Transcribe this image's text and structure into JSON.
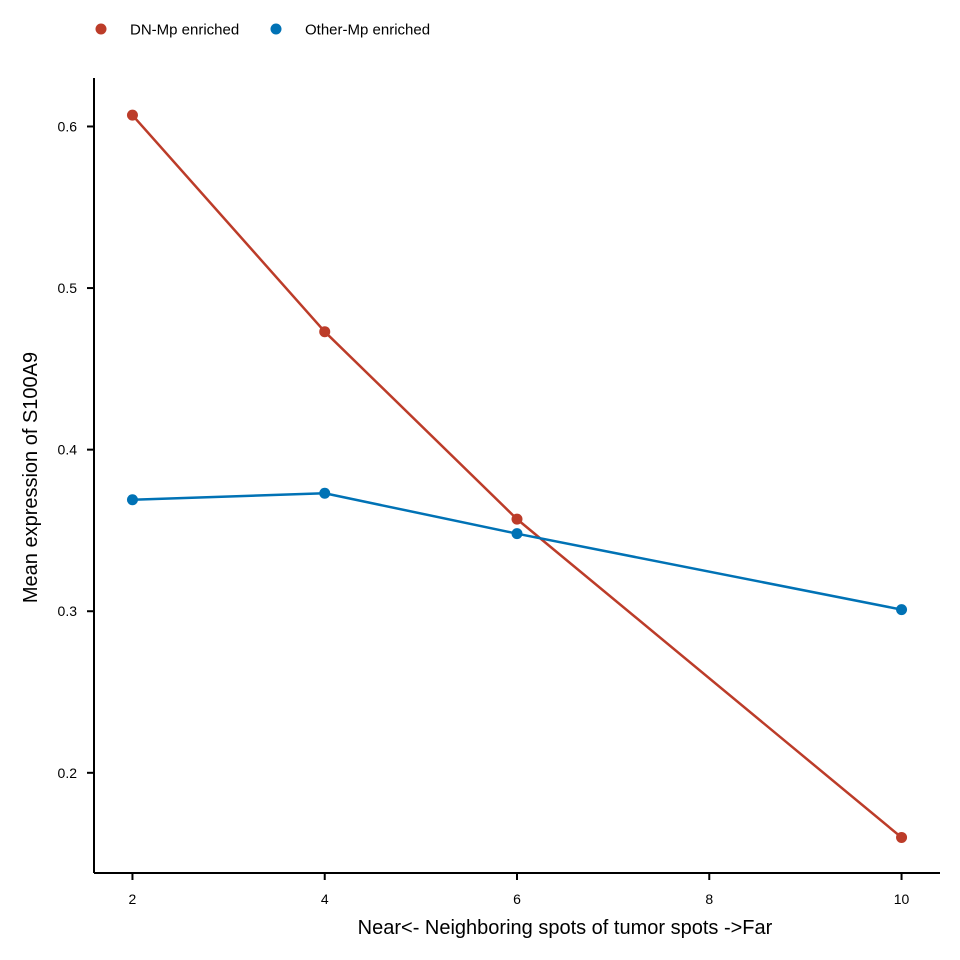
{
  "chart_data": {
    "type": "line",
    "title": "",
    "xlabel": "Near<- Neighboring spots of tumor spots ->Far",
    "ylabel": "Mean expression of S100A9",
    "x": [
      2,
      4,
      6,
      10
    ],
    "xticks": [
      "2",
      "4",
      "6",
      "8",
      "10"
    ],
    "yticks": [
      "0.2",
      "0.3",
      "0.4",
      "0.5",
      "0.6"
    ],
    "xlim": [
      1.6,
      10.4
    ],
    "ylim": [
      0.138,
      0.63
    ],
    "grid": false,
    "legend_position": "top-left",
    "series": [
      {
        "name": "DN-Mp enriched",
        "color": "#bc3c29",
        "values": [
          0.607,
          0.473,
          0.357,
          0.16
        ]
      },
      {
        "name": "Other-Mp enriched",
        "color": "#0072b5",
        "values": [
          0.369,
          0.373,
          0.348,
          0.301
        ]
      }
    ]
  }
}
